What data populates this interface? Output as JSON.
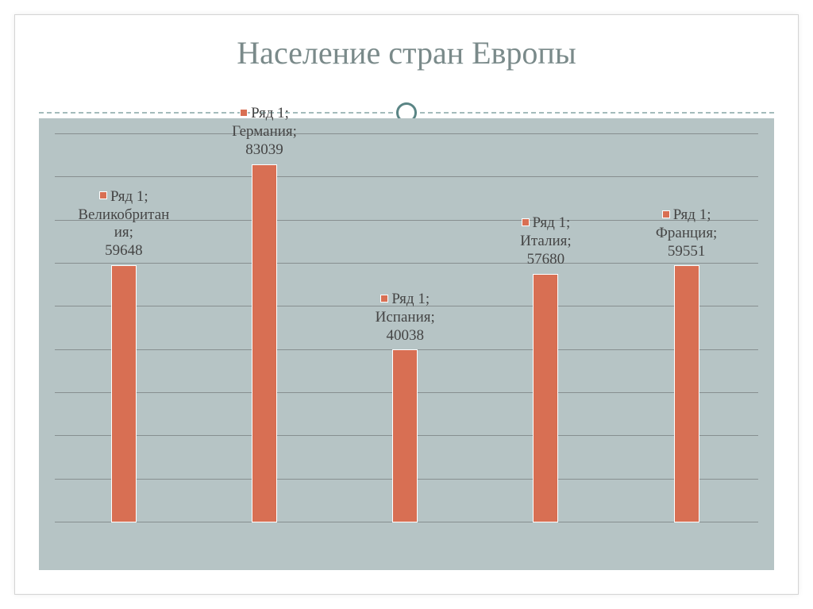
{
  "title": "Население стран Европы",
  "chart": {
    "type": "bar",
    "series_name": "Ряд 1",
    "ymax": 90000,
    "gridline_step": 10000,
    "gridline_count": 10,
    "background_color": "#b6c4c5",
    "gridline_color": "#878f90",
    "bar_color": "#d86f53",
    "bar_border_color": "#ffffff",
    "text_color": "#454545",
    "label_fontsize": 19,
    "title_color": "#7a8a8a",
    "title_fontsize": 40,
    "bar_width_pct": 3.6,
    "bars": [
      {
        "country": "Великобритания",
        "country_wrapped": [
          "Великобритан",
          "ия"
        ],
        "value": 59648,
        "x_pct": 8
      },
      {
        "country": "Германия",
        "country_wrapped": [
          "Германия"
        ],
        "value": 83039,
        "x_pct": 28
      },
      {
        "country": "Испания",
        "country_wrapped": [
          "Испания"
        ],
        "value": 40038,
        "x_pct": 48
      },
      {
        "country": "Италия",
        "country_wrapped": [
          "Италия"
        ],
        "value": 57680,
        "x_pct": 68
      },
      {
        "country": "Франция",
        "country_wrapped": [
          "Франция"
        ],
        "value": 59551,
        "x_pct": 88
      }
    ]
  }
}
